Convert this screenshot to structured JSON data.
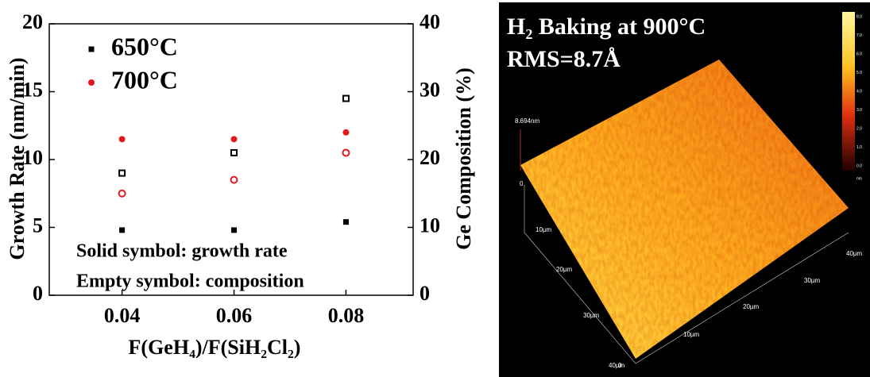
{
  "chart_data": {
    "type": "scatter",
    "xlabel": "F(GeH₄)/F(SiH₂Cl₂)",
    "ylabel": "Growth Rate (nm/min)",
    "y2label": "Ge Composition (%)",
    "annotations": [
      "Solid symbol: growth rate",
      "Empty symbol: composition"
    ],
    "x": [
      0.04,
      0.06,
      0.08
    ],
    "xlim": [
      0.027,
      0.092
    ],
    "xticks": [
      0.04,
      0.06,
      0.08
    ],
    "ylim": [
      0,
      20
    ],
    "yticks": [
      0,
      5,
      10,
      15,
      20
    ],
    "y2lim": [
      0,
      40
    ],
    "y2ticks": [
      0,
      10,
      20,
      30,
      40
    ],
    "legend": "upper left",
    "series": [
      {
        "name": "650°C",
        "color": "#000000",
        "marker": "square",
        "filled": true,
        "values": [
          4.8,
          4.8,
          5.4
        ]
      },
      {
        "name": "700°C",
        "color": "#e31a1c",
        "marker": "circle",
        "filled": true,
        "values": [
          11.5,
          11.5,
          12.0
        ]
      },
      {
        "color": "#000000",
        "marker": "square",
        "filled": false,
        "axis": "y2",
        "values": [
          18,
          21,
          29
        ]
      },
      {
        "color": "#e31a1c",
        "marker": "circle",
        "filled": false,
        "axis": "y2",
        "values": [
          15,
          17,
          21
        ]
      }
    ]
  },
  "image": {
    "title": "H₂ Baking at 900°C",
    "rms": "RMS=8.7Å",
    "z_label": "8.694nm",
    "z_zero": "0",
    "left_axis": [
      "10µm",
      "20µm",
      "30µm",
      "40µm"
    ],
    "right_axis": [
      "10µm",
      "20µm",
      "30µm",
      "40µm"
    ],
    "origin": "0",
    "colorbar": {
      "labels": [
        "8.0",
        "7.0",
        "6.0",
        "5.0",
        "4.0",
        "3.0",
        "2.0",
        "1.0",
        "0.0"
      ],
      "unit": "nm"
    }
  }
}
